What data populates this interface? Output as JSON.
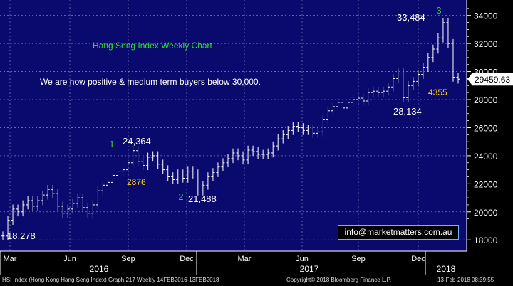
{
  "chart_data": {
    "type": "line",
    "title": "Hang Seng Index Weekly Chart",
    "commentary": "We are now positive & medium term buyers below 30,000.",
    "x_month_labels": [
      "Mar",
      "Jun",
      "Sep",
      "Dec",
      "Mar",
      "Jun",
      "Sep",
      "Dec"
    ],
    "x_year_labels": [
      "2016",
      "2017",
      "2018"
    ],
    "y_ticks": [
      18000,
      20000,
      22000,
      24000,
      26000,
      28000,
      30000,
      32000,
      34000
    ],
    "ylim": [
      17200,
      35100
    ],
    "last_value_label": "29459.63",
    "series": [
      {
        "values": [
          18278,
          19400,
          20200,
          20000,
          20500,
          20800,
          20400,
          20800,
          21200,
          21600,
          21300,
          20400,
          19900,
          20200,
          20600,
          21000,
          20300,
          19900,
          20500,
          21500,
          21900,
          22100,
          22600,
          22900,
          23000,
          23500,
          24364,
          23600,
          23300,
          23900,
          24000,
          23400,
          23000,
          22500,
          22300,
          22700,
          22400,
          22900,
          22700,
          21488,
          21900,
          22500,
          22800,
          23200,
          23500,
          23800,
          24200,
          24000,
          23700,
          24400,
          24300,
          24100,
          24100,
          24200,
          24700,
          25200,
          25500,
          25800,
          26100,
          26000,
          25800,
          25900,
          25600,
          25700,
          26600,
          27200,
          27500,
          27800,
          27400,
          27800,
          28000,
          28100,
          27900,
          28500,
          28600,
          28500,
          28600,
          28900,
          29500,
          29900,
          28134,
          29000,
          29300,
          29800,
          30300,
          31000,
          31600,
          32400,
          33484,
          32000,
          29600,
          29459.63
        ]
      }
    ],
    "annotations": [
      {
        "text": "18,278",
        "color": "#ffffff"
      },
      {
        "text": "1",
        "color": "#33cc33"
      },
      {
        "text": "24,364",
        "color": "#ffffff"
      },
      {
        "text": "2876",
        "color": "#ffd400"
      },
      {
        "text": "2",
        "color": "#33cc33"
      },
      {
        "text": "21,488",
        "color": "#ffffff"
      },
      {
        "text": "28,134",
        "color": "#ffffff"
      },
      {
        "text": "4355",
        "color": "#ffd400"
      },
      {
        "text": "3",
        "color": "#33cc33"
      },
      {
        "text": "33,484",
        "color": "#ffffff"
      }
    ],
    "grid": true,
    "colors": {
      "background": "#0a0a6e",
      "grid": "#7a7ab0",
      "price": "#ffffff",
      "title": "#33dd33",
      "last_value_bg": "#ffffff"
    }
  },
  "email": "info@marketmatters.com.au",
  "footer": {
    "left": "HSI Index (Hong Kong Hang Seng Index) Graph 217  Weekly 14FEB2016-13FEB2018",
    "center": "Copyright© 2018 Bloomberg Finance L.P.",
    "right": "13-Feb-2018 08:39:55"
  }
}
